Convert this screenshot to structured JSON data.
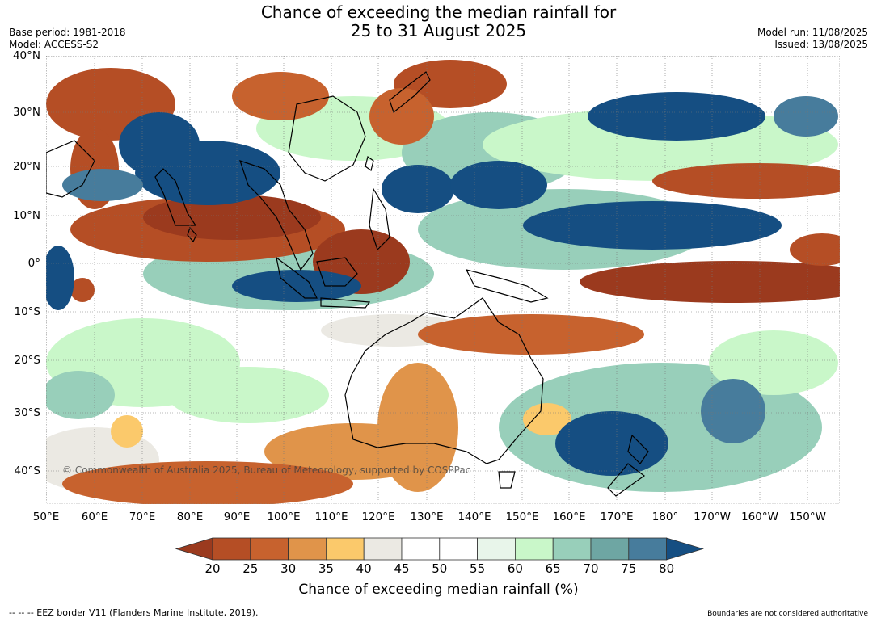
{
  "title_line1": "Chance of exceeding the median rainfall for",
  "title_line2": "25 to 31 August 2025",
  "base_period": "Base period: 1981-2018",
  "model": "Model: ACCESS-S2",
  "model_run": "Model run: 11/08/2025",
  "issued": "Issued: 13/08/2025",
  "lat_labels": [
    "40°N",
    "30°N",
    "20°N",
    "10°N",
    "0°",
    "10°S",
    "20°S",
    "30°S",
    "40°S"
  ],
  "lon_labels": [
    "50°E",
    "60°E",
    "70°E",
    "80°E",
    "90°E",
    "100°E",
    "110°E",
    "120°E",
    "130°E",
    "140°E",
    "150°E",
    "160°E",
    "170°E",
    "180°",
    "170°W",
    "160°W",
    "150°W"
  ],
  "colorbar": {
    "ticks": [
      "20",
      "25",
      "30",
      "35",
      "40",
      "45",
      "50",
      "55",
      "60",
      "65",
      "70",
      "75",
      "80"
    ],
    "label": "Chance of exceeding median rainfall (%)",
    "colors": [
      "#9b3a1e",
      "#b54e25",
      "#c7622e",
      "#e0944a",
      "#fbc96b",
      "#ebe9e3",
      "#ffffff",
      "#ffffff",
      "#e8f5ea",
      "#c9f7c9",
      "#98cfba",
      "#6ea6a3",
      "#477c9c",
      "#154e82"
    ]
  },
  "copyright": "© Commonwealth of Australia 2025, Bureau of Meteorology, supported by COSPPac",
  "footer_left": "--  --  -- EEZ border V11 (Flanders Marine Institute, 2019).",
  "footer_right": "Boundaries are not considered authoritative"
}
